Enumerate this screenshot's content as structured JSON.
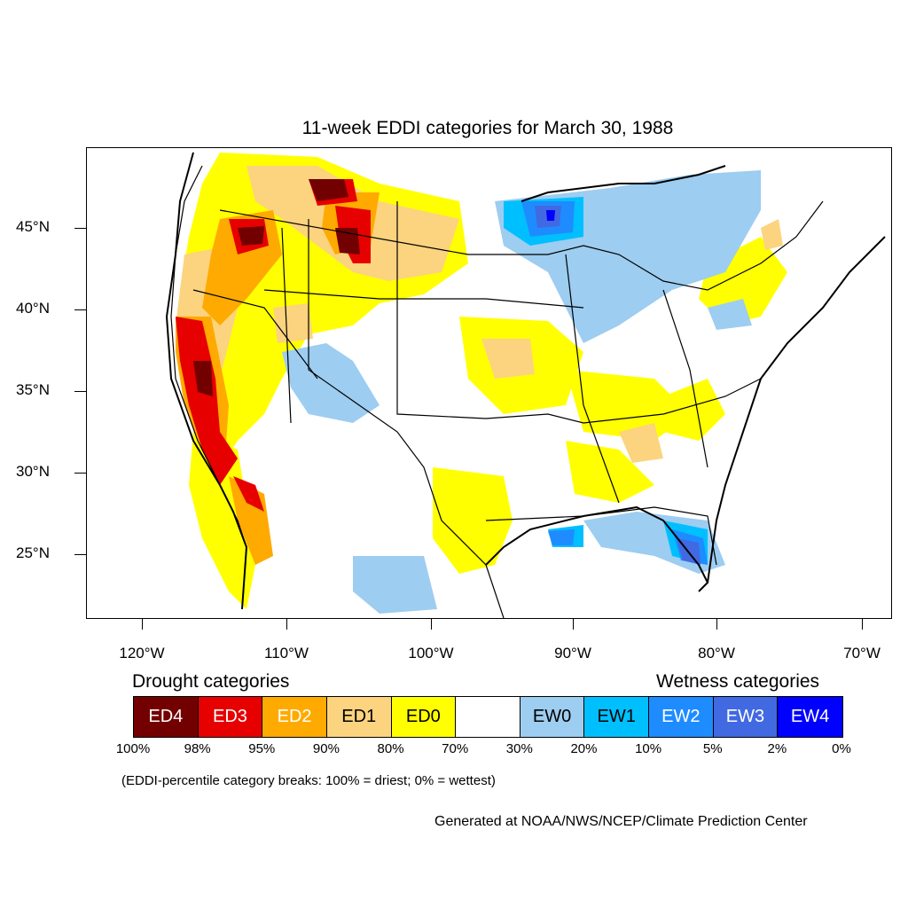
{
  "title": "11-week EDDI categories for March 30, 1988",
  "map": {
    "lat_labels": [
      "45°N",
      "40°N",
      "35°N",
      "30°N",
      "25°N"
    ],
    "lon_labels": [
      "120°W",
      "110°W",
      "100°W",
      "90°W",
      "80°W",
      "70°W"
    ]
  },
  "legend": {
    "drought_heading": "Drought categories",
    "wetness_heading": "Wetness categories",
    "categories": [
      {
        "label": "ED4",
        "color": "#730000",
        "text_color": "#ffffff"
      },
      {
        "label": "ED3",
        "color": "#e60000",
        "text_color": "#ffffff"
      },
      {
        "label": "ED2",
        "color": "#ffaa00",
        "text_color": "#ffffff"
      },
      {
        "label": "ED1",
        "color": "#fcd37f",
        "text_color": "#000000"
      },
      {
        "label": "ED0",
        "color": "#ffff00",
        "text_color": "#000000"
      },
      {
        "label": "",
        "color": "#ffffff",
        "text_color": "#000000"
      },
      {
        "label": "EW0",
        "color": "#9dcdf0",
        "text_color": "#000000"
      },
      {
        "label": "EW1",
        "color": "#00bfff",
        "text_color": "#000000"
      },
      {
        "label": "EW2",
        "color": "#1e8cff",
        "text_color": "#ffffff"
      },
      {
        "label": "EW3",
        "color": "#4169e1",
        "text_color": "#ffffff"
      },
      {
        "label": "EW4",
        "color": "#0000ff",
        "text_color": "#ffffff"
      }
    ],
    "breaks": [
      "100%",
      "98%",
      "95%",
      "90%",
      "80%",
      "70%",
      "30%",
      "20%",
      "10%",
      "5%",
      "2%",
      "0%"
    ]
  },
  "note": "(EDDI-percentile category breaks: 100% = driest; 0% = wettest)",
  "credit": "Generated at NOAA/NWS/NCEP/Climate Prediction Center"
}
